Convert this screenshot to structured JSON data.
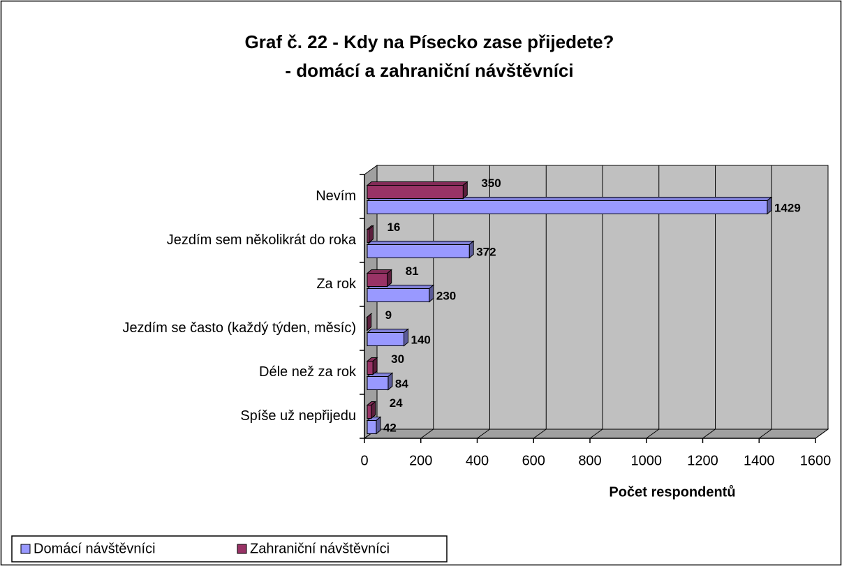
{
  "chart_data": {
    "type": "bar3d_horizontal",
    "title": "Graf č. 22 - Kdy na Písecko zase přijedete?",
    "subtitle": "- domácí a zahraniční návštěvníci",
    "x_label": "Počet respondentů",
    "categories": [
      "Nevím",
      "Jezdím sem několikrát do roka",
      "Za rok",
      "Jezdím se často (každý týden, měsíc)",
      "Déle než za rok",
      "Spíše už nepřijedu"
    ],
    "series": [
      {
        "name": "Domácí návštěvníci",
        "color": "#9999ff",
        "values": [
          1429,
          372,
          230,
          140,
          84,
          42
        ]
      },
      {
        "name": "Zahraniční návštěvníci",
        "color": "#993366",
        "values": [
          350,
          16,
          81,
          9,
          30,
          24
        ]
      }
    ],
    "xlim": [
      0,
      1600
    ],
    "xticks": [
      0,
      200,
      400,
      600,
      800,
      1000,
      1200,
      1400,
      1600
    ],
    "grid": true,
    "wall_color": "#c0c0c0",
    "legend": "bottom-left"
  }
}
